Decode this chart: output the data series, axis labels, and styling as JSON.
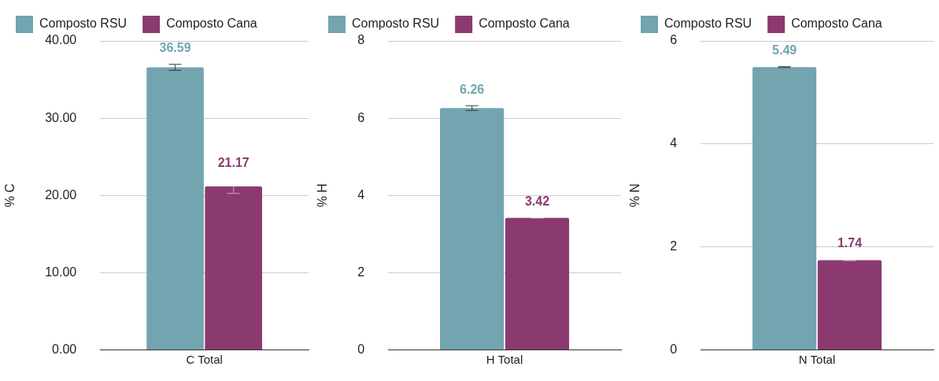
{
  "chart_data": [
    {
      "type": "bar",
      "categories": [
        "C Total"
      ],
      "ylabel": "% C",
      "ylim": [
        0,
        40
      ],
      "yticks": [
        {
          "value": 0,
          "label": "0.00"
        },
        {
          "value": 10,
          "label": "10.00"
        },
        {
          "value": 20,
          "label": "20.00"
        },
        {
          "value": 30,
          "label": "30.00"
        },
        {
          "value": 40,
          "label": "40.00"
        }
      ],
      "grid": "y",
      "legend": "top",
      "data_labels": true,
      "series": [
        {
          "name": "Composto RSU",
          "color": "#72a5b0",
          "values": [
            36.59
          ],
          "errors": [
            0.4
          ]
        },
        {
          "name": "Composto Cana",
          "color": "#8b3a6f",
          "values": [
            21.17
          ],
          "errors": [
            0.9
          ]
        }
      ]
    },
    {
      "type": "bar",
      "categories": [
        "H Total"
      ],
      "ylabel": "% H",
      "ylim": [
        0,
        8
      ],
      "yticks": [
        0,
        2,
        4,
        6,
        8
      ],
      "grid": "y",
      "legend": "top",
      "data_labels": true,
      "series": [
        {
          "name": "Composto RSU",
          "color": "#72a5b0",
          "values": [
            6.26
          ],
          "errors": [
            0.06
          ]
        },
        {
          "name": "Composto Cana",
          "color": "#8b3a6f",
          "values": [
            3.42
          ],
          "errors": [
            0.01
          ]
        }
      ]
    },
    {
      "type": "bar",
      "categories": [
        "N Total"
      ],
      "ylabel": "% N",
      "ylim": [
        0,
        6
      ],
      "yticks": [
        0,
        2,
        4,
        6
      ],
      "grid": "y",
      "legend": "top",
      "data_labels": true,
      "series": [
        {
          "name": "Composto RSU",
          "color": "#72a5b0",
          "values": [
            5.49
          ],
          "errors": [
            0.01
          ]
        },
        {
          "name": "Composto Cana",
          "color": "#8b3a6f",
          "values": [
            1.74
          ],
          "errors": [
            0.01
          ]
        }
      ]
    }
  ]
}
